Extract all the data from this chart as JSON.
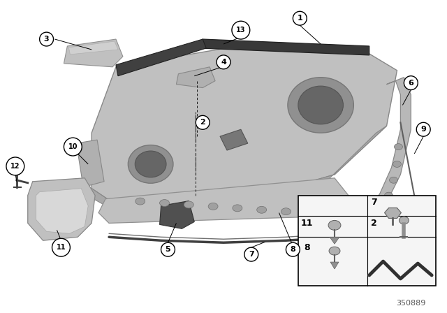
{
  "background_color": "#ffffff",
  "part_number": "350889",
  "shelf_color": "#b8b8b8",
  "shelf_edge_color": "#888888",
  "dark_color": "#404040",
  "medium_color": "#909090",
  "light_color": "#d0d0d0"
}
